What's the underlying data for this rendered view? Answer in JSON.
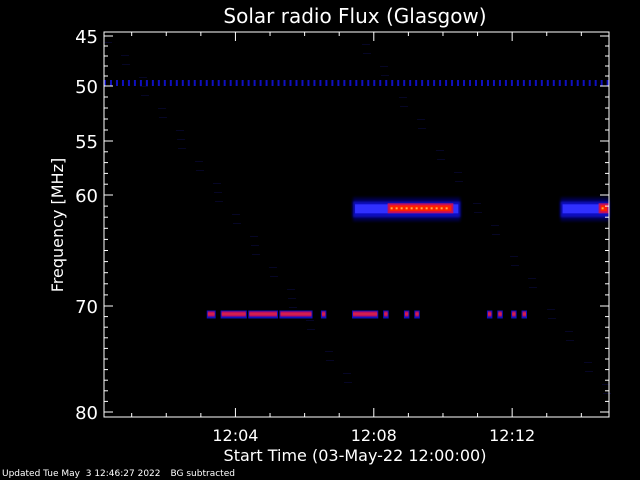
{
  "chart_data": {
    "type": "heatmap",
    "title": "Solar radio Flux (Glasgow)",
    "xlabel": "Start Time (03-May-22 12:00:00)",
    "ylabel": "Frequency [MHz]",
    "xlim_minutes": [
      0.2,
      14.8
    ],
    "ylim_mhz": [
      45,
      80
    ],
    "x_ticks": [
      {
        "minute": 4,
        "label": "12:04"
      },
      {
        "minute": 8,
        "label": "12:08"
      },
      {
        "minute": 12,
        "label": "12:12"
      }
    ],
    "y_ticks": [
      {
        "mhz": 45,
        "label": "45"
      },
      {
        "mhz": 50,
        "label": "50"
      },
      {
        "mhz": 55,
        "label": "55"
      },
      {
        "mhz": 60,
        "label": "60"
      },
      {
        "mhz": 70,
        "label": "70"
      },
      {
        "mhz": 80,
        "label": "80"
      }
    ],
    "features": [
      {
        "name": "emission band 61 MHz (a)",
        "x_start_min": 7.4,
        "x_end_min": 10.5,
        "mhz_center": 61.2,
        "peak_x_start_min": 8.4,
        "peak_x_end_min": 10.3
      },
      {
        "name": "emission band 61 MHz (b)",
        "x_start_min": 13.4,
        "x_end_min": 14.8,
        "mhz_center": 61.2,
        "peak_x_start_min": 14.5,
        "peak_x_end_min": 14.8
      },
      {
        "name": "interference line 70.8 MHz",
        "mhz_center": 70.8,
        "segments": [
          [
            3.2,
            3.4
          ],
          [
            3.6,
            4.3
          ],
          [
            4.4,
            5.2
          ],
          [
            5.3,
            6.2
          ],
          [
            6.5,
            6.6
          ],
          [
            7.4,
            8.1
          ],
          [
            8.3,
            8.4
          ],
          [
            8.9,
            9.0
          ],
          [
            9.2,
            9.3
          ],
          [
            11.3,
            11.4
          ],
          [
            11.6,
            11.7
          ],
          [
            12.0,
            12.1
          ],
          [
            12.3,
            12.4
          ]
        ]
      },
      {
        "name": "interference line 49.7 MHz",
        "mhz_center": 49.7,
        "x_start_min": 0.2,
        "x_end_min": 14.8
      }
    ],
    "colors": {
      "background": "#000000",
      "low": "#1010c0",
      "mid": "#c01060",
      "high": "#ff2000"
    }
  },
  "footer": {
    "updated": "Updated Tue May  3 12:46:27 2022",
    "mode": "BG subtracted"
  }
}
